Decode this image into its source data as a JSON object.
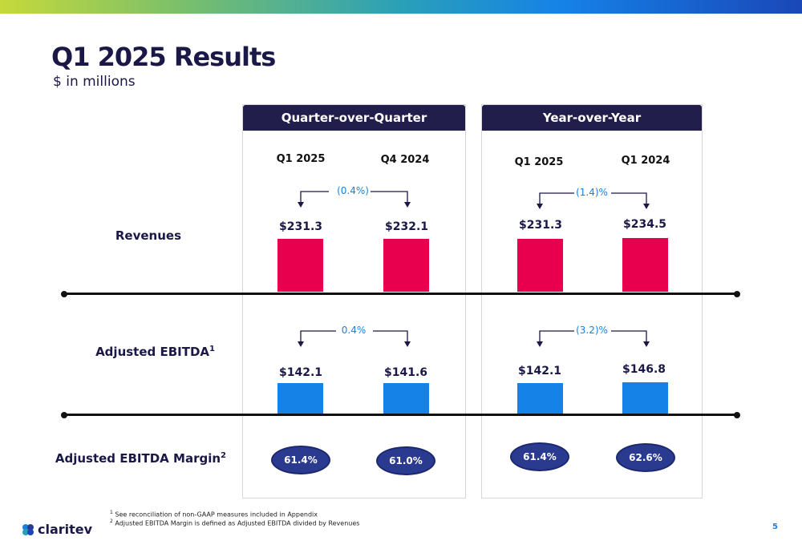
{
  "title": "Q1 2025 Results",
  "subtitle": "$ in millions",
  "row_labels": {
    "revenues": "Revenues",
    "ebitda": "Adjusted EBITDA",
    "ebitda_sup": "1",
    "margin": "Adjusted EBITDA Margin",
    "margin_sup": "2"
  },
  "colors": {
    "revenues": "#e8004f",
    "ebitda": "#1582e8",
    "header": "#211e4b",
    "change": "#1582e8"
  },
  "panels": [
    {
      "header": "Quarter-over-Quarter",
      "periods": [
        "Q1 2025",
        "Q4 2024"
      ],
      "revenues": {
        "values": [
          231.3,
          232.1
        ],
        "labels": [
          "$231.3",
          "$232.1"
        ],
        "change": "(0.4%)"
      },
      "ebitda": {
        "values": [
          142.1,
          141.6
        ],
        "labels": [
          "$142.1",
          "$141.6"
        ],
        "change": "0.4%"
      },
      "margin": [
        "61.4%",
        "61.0%"
      ]
    },
    {
      "header": "Year-over-Year",
      "periods": [
        "Q1 2025",
        "Q1 2024"
      ],
      "revenues": {
        "values": [
          231.3,
          234.5
        ],
        "labels": [
          "$231.3",
          "$234.5"
        ],
        "change": "(1.4)%"
      },
      "ebitda": {
        "values": [
          142.1,
          146.8
        ],
        "labels": [
          "$142.1",
          "$146.8"
        ],
        "change": "(3.2)%"
      },
      "margin": [
        "61.4%",
        "62.6%"
      ]
    }
  ],
  "chart_data": [
    {
      "type": "bar",
      "categories": [
        "Q1 2025",
        "Q4 2024"
      ],
      "series": [
        {
          "name": "Revenues",
          "values": [
            231.3,
            232.1
          ]
        },
        {
          "name": "Adjusted EBITDA",
          "values": [
            142.1,
            141.6
          ]
        }
      ],
      "title": "Quarter-over-Quarter"
    },
    {
      "type": "bar",
      "categories": [
        "Q1 2025",
        "Q1 2024"
      ],
      "series": [
        {
          "name": "Revenues",
          "values": [
            231.3,
            234.5
          ]
        },
        {
          "name": "Adjusted EBITDA",
          "values": [
            142.1,
            146.8
          ]
        }
      ],
      "title": "Year-over-Year"
    }
  ],
  "footnotes": [
    {
      "sup": "1",
      "text": " See reconciliation of non-GAAP measures included in Appendix"
    },
    {
      "sup": "2",
      "text": " Adjusted EBITDA Margin is defined as Adjusted EBITDA divided by Revenues"
    }
  ],
  "logo_text": "claritev",
  "logo_icon": "claritev-logo-icon",
  "page_number": "5"
}
